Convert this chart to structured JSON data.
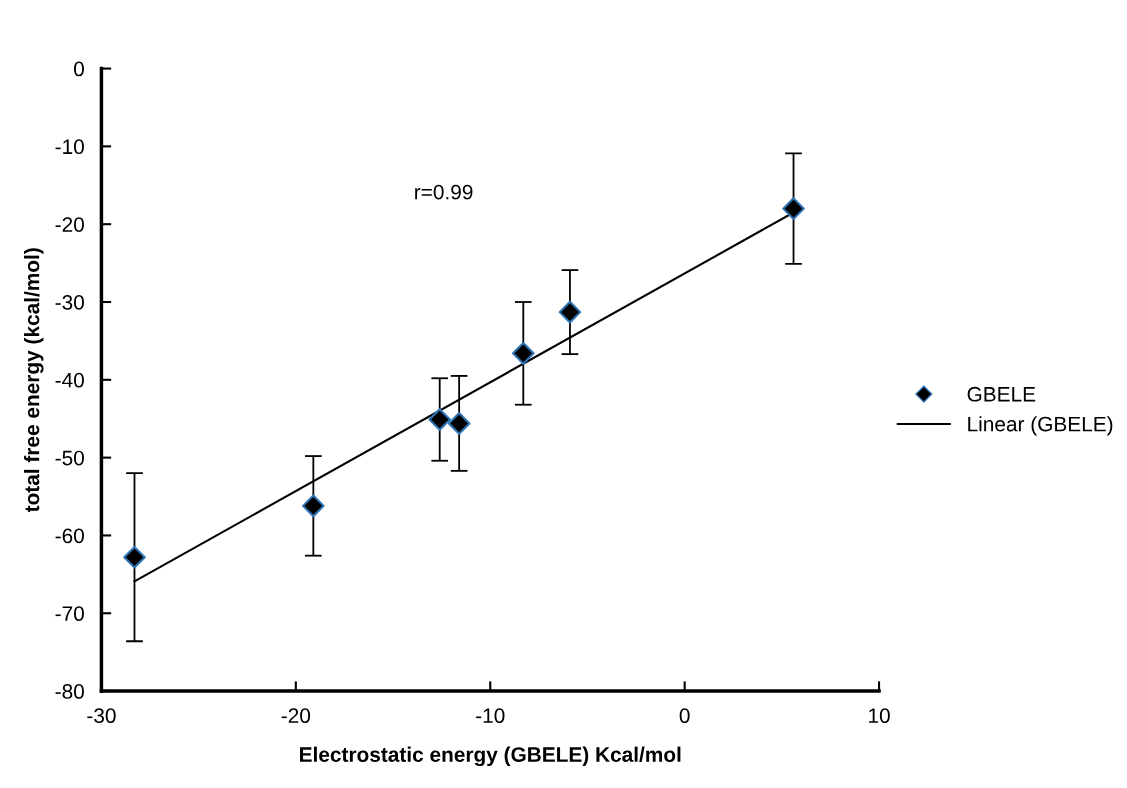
{
  "chart_data": {
    "type": "scatter",
    "xlabel": "Electrostatic energy (GBELE) Kcal/mol",
    "ylabel": "total free energy (kcal/mol)",
    "xlim": [
      -30,
      10
    ],
    "xticks": [
      -30,
      -20,
      -10,
      0,
      10
    ],
    "ylim": [
      -80,
      0
    ],
    "yticks": [
      -80,
      -70,
      -60,
      -50,
      -40,
      -30,
      -20,
      -10,
      0
    ],
    "annotations": [
      "r=0.99"
    ],
    "legend": "right",
    "grid": false,
    "marker": "diamond",
    "series": [
      {
        "name": "GBELE",
        "color": "#000000",
        "x": [
          -28.3,
          -19.1,
          -12.6,
          -11.6,
          -8.3,
          -5.9,
          5.6
        ],
        "values": [
          -62.8,
          -56.2,
          -45.1,
          -45.6,
          -36.6,
          -31.3,
          -18.0
        ],
        "errors": [
          10.8,
          6.4,
          5.3,
          6.1,
          6.6,
          5.4,
          7.1
        ]
      },
      {
        "name": "Linear (GBELE)",
        "type": "line",
        "color": "#000000",
        "marker": "none",
        "x": [
          -28.3,
          5.6
        ],
        "values": [
          -65.9,
          -18.5
        ]
      }
    ]
  }
}
